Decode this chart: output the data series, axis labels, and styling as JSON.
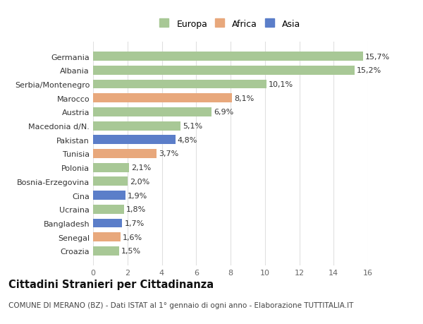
{
  "categories": [
    "Croazia",
    "Senegal",
    "Bangladesh",
    "Ucraina",
    "Cina",
    "Bosnia-Erzegovina",
    "Polonia",
    "Tunisia",
    "Pakistan",
    "Macedonia d/N.",
    "Austria",
    "Marocco",
    "Serbia/Montenegro",
    "Albania",
    "Germania"
  ],
  "values": [
    1.5,
    1.6,
    1.7,
    1.8,
    1.9,
    2.0,
    2.1,
    3.7,
    4.8,
    5.1,
    6.9,
    8.1,
    10.1,
    15.2,
    15.7
  ],
  "colors": [
    "#a8c896",
    "#e8a87c",
    "#5b7ec9",
    "#a8c896",
    "#5b7ec9",
    "#a8c896",
    "#a8c896",
    "#e8a87c",
    "#5b7ec9",
    "#a8c896",
    "#a8c896",
    "#e8a87c",
    "#a8c896",
    "#a8c896",
    "#a8c896"
  ],
  "labels": [
    "1,5%",
    "1,6%",
    "1,7%",
    "1,8%",
    "1,9%",
    "2,0%",
    "2,1%",
    "3,7%",
    "4,8%",
    "5,1%",
    "6,9%",
    "8,1%",
    "10,1%",
    "15,2%",
    "15,7%"
  ],
  "legend_labels": [
    "Europa",
    "Africa",
    "Asia"
  ],
  "legend_colors": [
    "#a8c896",
    "#e8a87c",
    "#5b7ec9"
  ],
  "title": "Cittadini Stranieri per Cittadinanza",
  "subtitle": "COMUNE DI MERANO (BZ) - Dati ISTAT al 1° gennaio di ogni anno - Elaborazione TUTTITALIA.IT",
  "xlim": [
    0,
    16
  ],
  "xticks": [
    0,
    2,
    4,
    6,
    8,
    10,
    12,
    14,
    16
  ],
  "fig_bg": "#ffffff",
  "plot_bg": "#ffffff",
  "bar_height": 0.65,
  "grid_color": "#e0e0e0",
  "label_fontsize": 8,
  "tick_fontsize": 8,
  "ytick_fontsize": 8,
  "title_fontsize": 10.5,
  "subtitle_fontsize": 7.5,
  "legend_fontsize": 9
}
